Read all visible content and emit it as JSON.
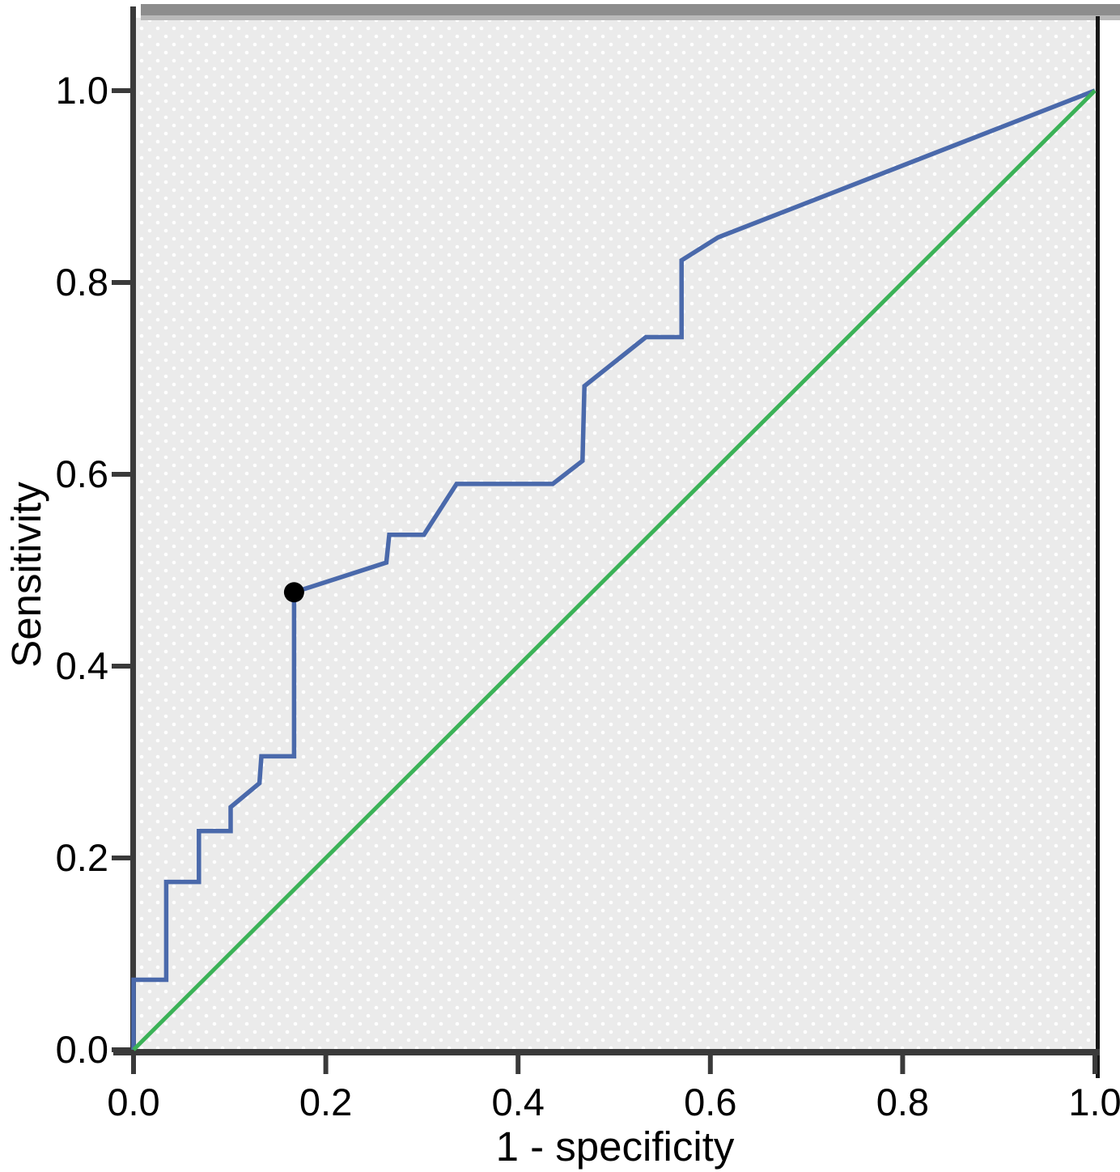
{
  "chart_data": {
    "type": "line",
    "subtype": "roc-curve",
    "title": "",
    "xlabel": "1 - specificity",
    "ylabel": "Sensitivity",
    "xlim": [
      0,
      1
    ],
    "ylim": [
      0,
      1
    ],
    "x_ticks": [
      "0.0",
      "0.2",
      "0.4",
      "0.6",
      "0.8",
      "1.0"
    ],
    "y_ticks": [
      "0.0",
      "0.2",
      "0.4",
      "0.6",
      "0.8",
      "1.0"
    ],
    "grid": false,
    "legend": "none",
    "series": [
      {
        "name": "roc-curve",
        "color": "#4a69ab",
        "stroke_width": 5.5,
        "points": [
          [
            0.0,
            0.0
          ],
          [
            0.0,
            0.073
          ],
          [
            0.034,
            0.073
          ],
          [
            0.034,
            0.175
          ],
          [
            0.068,
            0.175
          ],
          [
            0.068,
            0.228
          ],
          [
            0.101,
            0.228
          ],
          [
            0.101,
            0.253
          ],
          [
            0.131,
            0.278
          ],
          [
            0.133,
            0.306
          ],
          [
            0.167,
            0.306
          ],
          [
            0.167,
            0.477
          ],
          [
            0.263,
            0.508
          ],
          [
            0.266,
            0.537
          ],
          [
            0.302,
            0.537
          ],
          [
            0.336,
            0.59
          ],
          [
            0.436,
            0.59
          ],
          [
            0.467,
            0.614
          ],
          [
            0.469,
            0.692
          ],
          [
            0.533,
            0.743
          ],
          [
            0.57,
            0.743
          ],
          [
            0.57,
            0.823
          ],
          [
            0.608,
            0.847
          ],
          [
            1.0,
            1.0
          ]
        ]
      },
      {
        "name": "reference-line",
        "color": "#3bb257",
        "stroke_width": 5,
        "points": [
          [
            0,
            0
          ],
          [
            1,
            1
          ]
        ]
      }
    ],
    "marker": {
      "name": "optimal-cutoff-point",
      "x": 0.167,
      "y": 0.477,
      "radius": 12.5,
      "color": "#000000"
    },
    "colors": {
      "plot_bg": "#ebebeb",
      "pattern_dot": "#ffffff",
      "axis": "#3a3a3a",
      "frame_right": "#161616",
      "top_bar": "#8d8d8d",
      "top_bar_light": "#b9b9b9"
    }
  }
}
